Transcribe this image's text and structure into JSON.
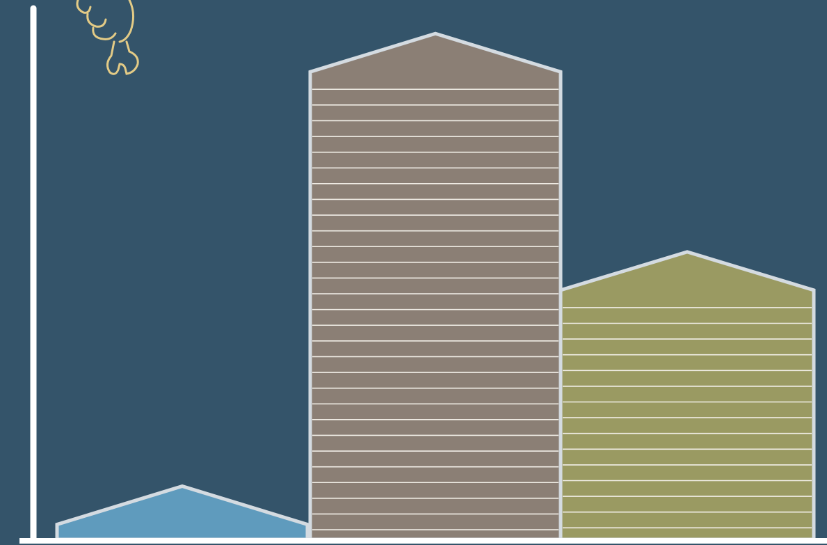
{
  "chart_data": {
    "type": "bar",
    "values": [
      10,
      95,
      54
    ],
    "colors": [
      "#5f9bbd",
      "#8b7f75",
      "#9a9a62"
    ],
    "ylim": [
      0,
      100
    ]
  }
}
